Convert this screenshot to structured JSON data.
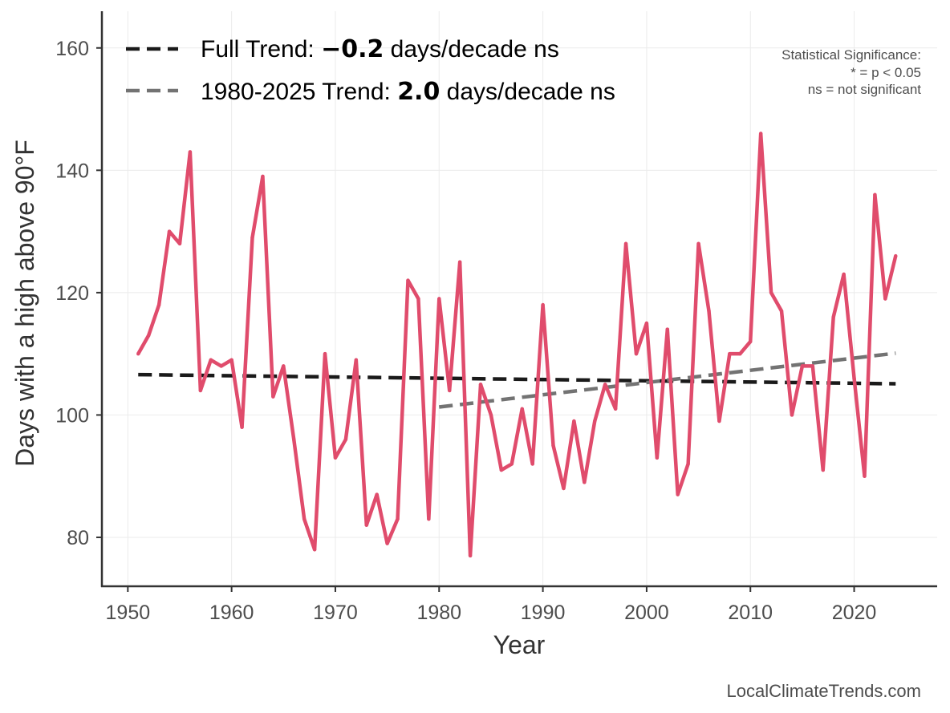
{
  "chart_data": {
    "type": "line",
    "xlabel": "Year",
    "ylabel": "Days with a high above 90°F",
    "xlim": [
      1947.5,
      2028
    ],
    "ylim": [
      72,
      166
    ],
    "x_ticks": [
      1950,
      1960,
      1970,
      1980,
      1990,
      2000,
      2010,
      2020
    ],
    "y_ticks": [
      80,
      100,
      120,
      140,
      160
    ],
    "grid": true,
    "series": [
      {
        "name": "Annual days above 90°F",
        "color": "#e04c6c",
        "x": [
          1951,
          1952,
          1953,
          1954,
          1955,
          1956,
          1957,
          1958,
          1959,
          1960,
          1961,
          1962,
          1963,
          1964,
          1965,
          1966,
          1967,
          1968,
          1969,
          1970,
          1971,
          1972,
          1973,
          1974,
          1975,
          1976,
          1977,
          1978,
          1979,
          1980,
          1981,
          1982,
          1983,
          1984,
          1985,
          1986,
          1987,
          1988,
          1989,
          1990,
          1991,
          1992,
          1993,
          1994,
          1995,
          1996,
          1997,
          1998,
          1999,
          2000,
          2001,
          2002,
          2003,
          2004,
          2005,
          2006,
          2007,
          2008,
          2009,
          2010,
          2011,
          2012,
          2013,
          2014,
          2015,
          2016,
          2017,
          2018,
          2019,
          2020,
          2021,
          2022,
          2023,
          2024
        ],
        "values": [
          110,
          113,
          118,
          130,
          128,
          143,
          104,
          109,
          108,
          109,
          98,
          129,
          139,
          103,
          108,
          96,
          83,
          78,
          110,
          93,
          96,
          109,
          82,
          87,
          79,
          83,
          122,
          119,
          83,
          119,
          104,
          125,
          77,
          105,
          100,
          91,
          92,
          101,
          92,
          118,
          95,
          88,
          99,
          89,
          99,
          105,
          101,
          128,
          110,
          115,
          93,
          114,
          87,
          92,
          128,
          117,
          99,
          110,
          110,
          112,
          146,
          120,
          117,
          100,
          108,
          108,
          91,
          116,
          123,
          106,
          90,
          136,
          119,
          126
        ]
      }
    ],
    "trend_lines": [
      {
        "name": "Full Trend",
        "color": "#1a1a1a",
        "style": "dashed",
        "x": [
          1951,
          2024
        ],
        "values": [
          106.6,
          105.1
        ]
      },
      {
        "name": "1980-2025 Trend",
        "color": "#737373",
        "style": "dashed",
        "x": [
          1980,
          2024
        ],
        "values": [
          101.3,
          110.1
        ]
      }
    ],
    "legend": {
      "position": "top-left",
      "entries": [
        {
          "prefix": "Full Trend: ",
          "value": "−0.2",
          "suffix": " days/decade ns"
        },
        {
          "prefix": "1980-2025 Trend: ",
          "value": "2.0",
          "suffix": " days/decade ns"
        }
      ]
    },
    "annotation": {
      "position": "top-right",
      "lines": [
        "Statistical Significance:",
        "* = p < 0.05",
        "ns = not significant"
      ]
    },
    "source": "LocalClimateTrends.com"
  }
}
